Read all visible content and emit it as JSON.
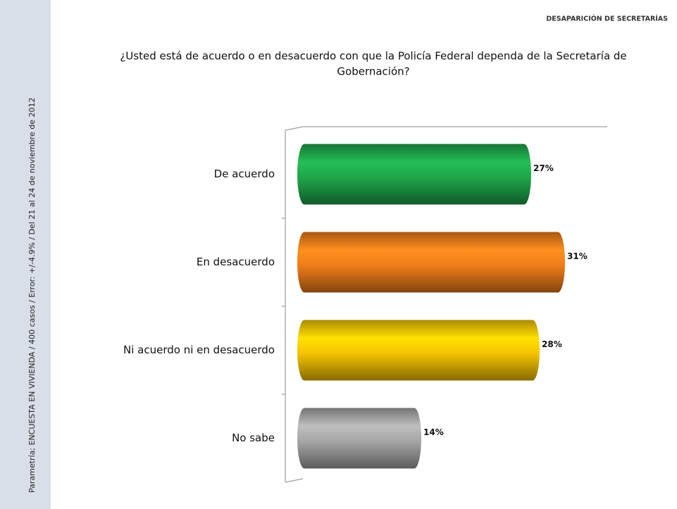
{
  "chart_data": {
    "type": "bar",
    "orientation": "horizontal",
    "subtitle": "DESAPARICIÓN DE SECRETARÍAS",
    "title": "¿Usted está de acuerdo o en desacuerdo con que la Policía Federal dependa de la Secretaría de",
    "title_line2": "Gobernación?",
    "source": "Parametría; ENCUESTA EN VIVIENDA / 400 casos / Error: +/-4.9% / Del 21 al 24 de noviembre de 2012",
    "categories": [
      "De acuerdo",
      "En desacuerdo",
      "Ni acuerdo ni en desacuerdo",
      "No sabe"
    ],
    "values": [
      27,
      31,
      28,
      14
    ],
    "value_labels": [
      "27%",
      "31%",
      "28%",
      "14%"
    ],
    "colors": [
      "#1fa64a",
      "#f07d1a",
      "#f5c400",
      "#a6a6a6"
    ],
    "xlim": [
      0,
      36
    ]
  }
}
